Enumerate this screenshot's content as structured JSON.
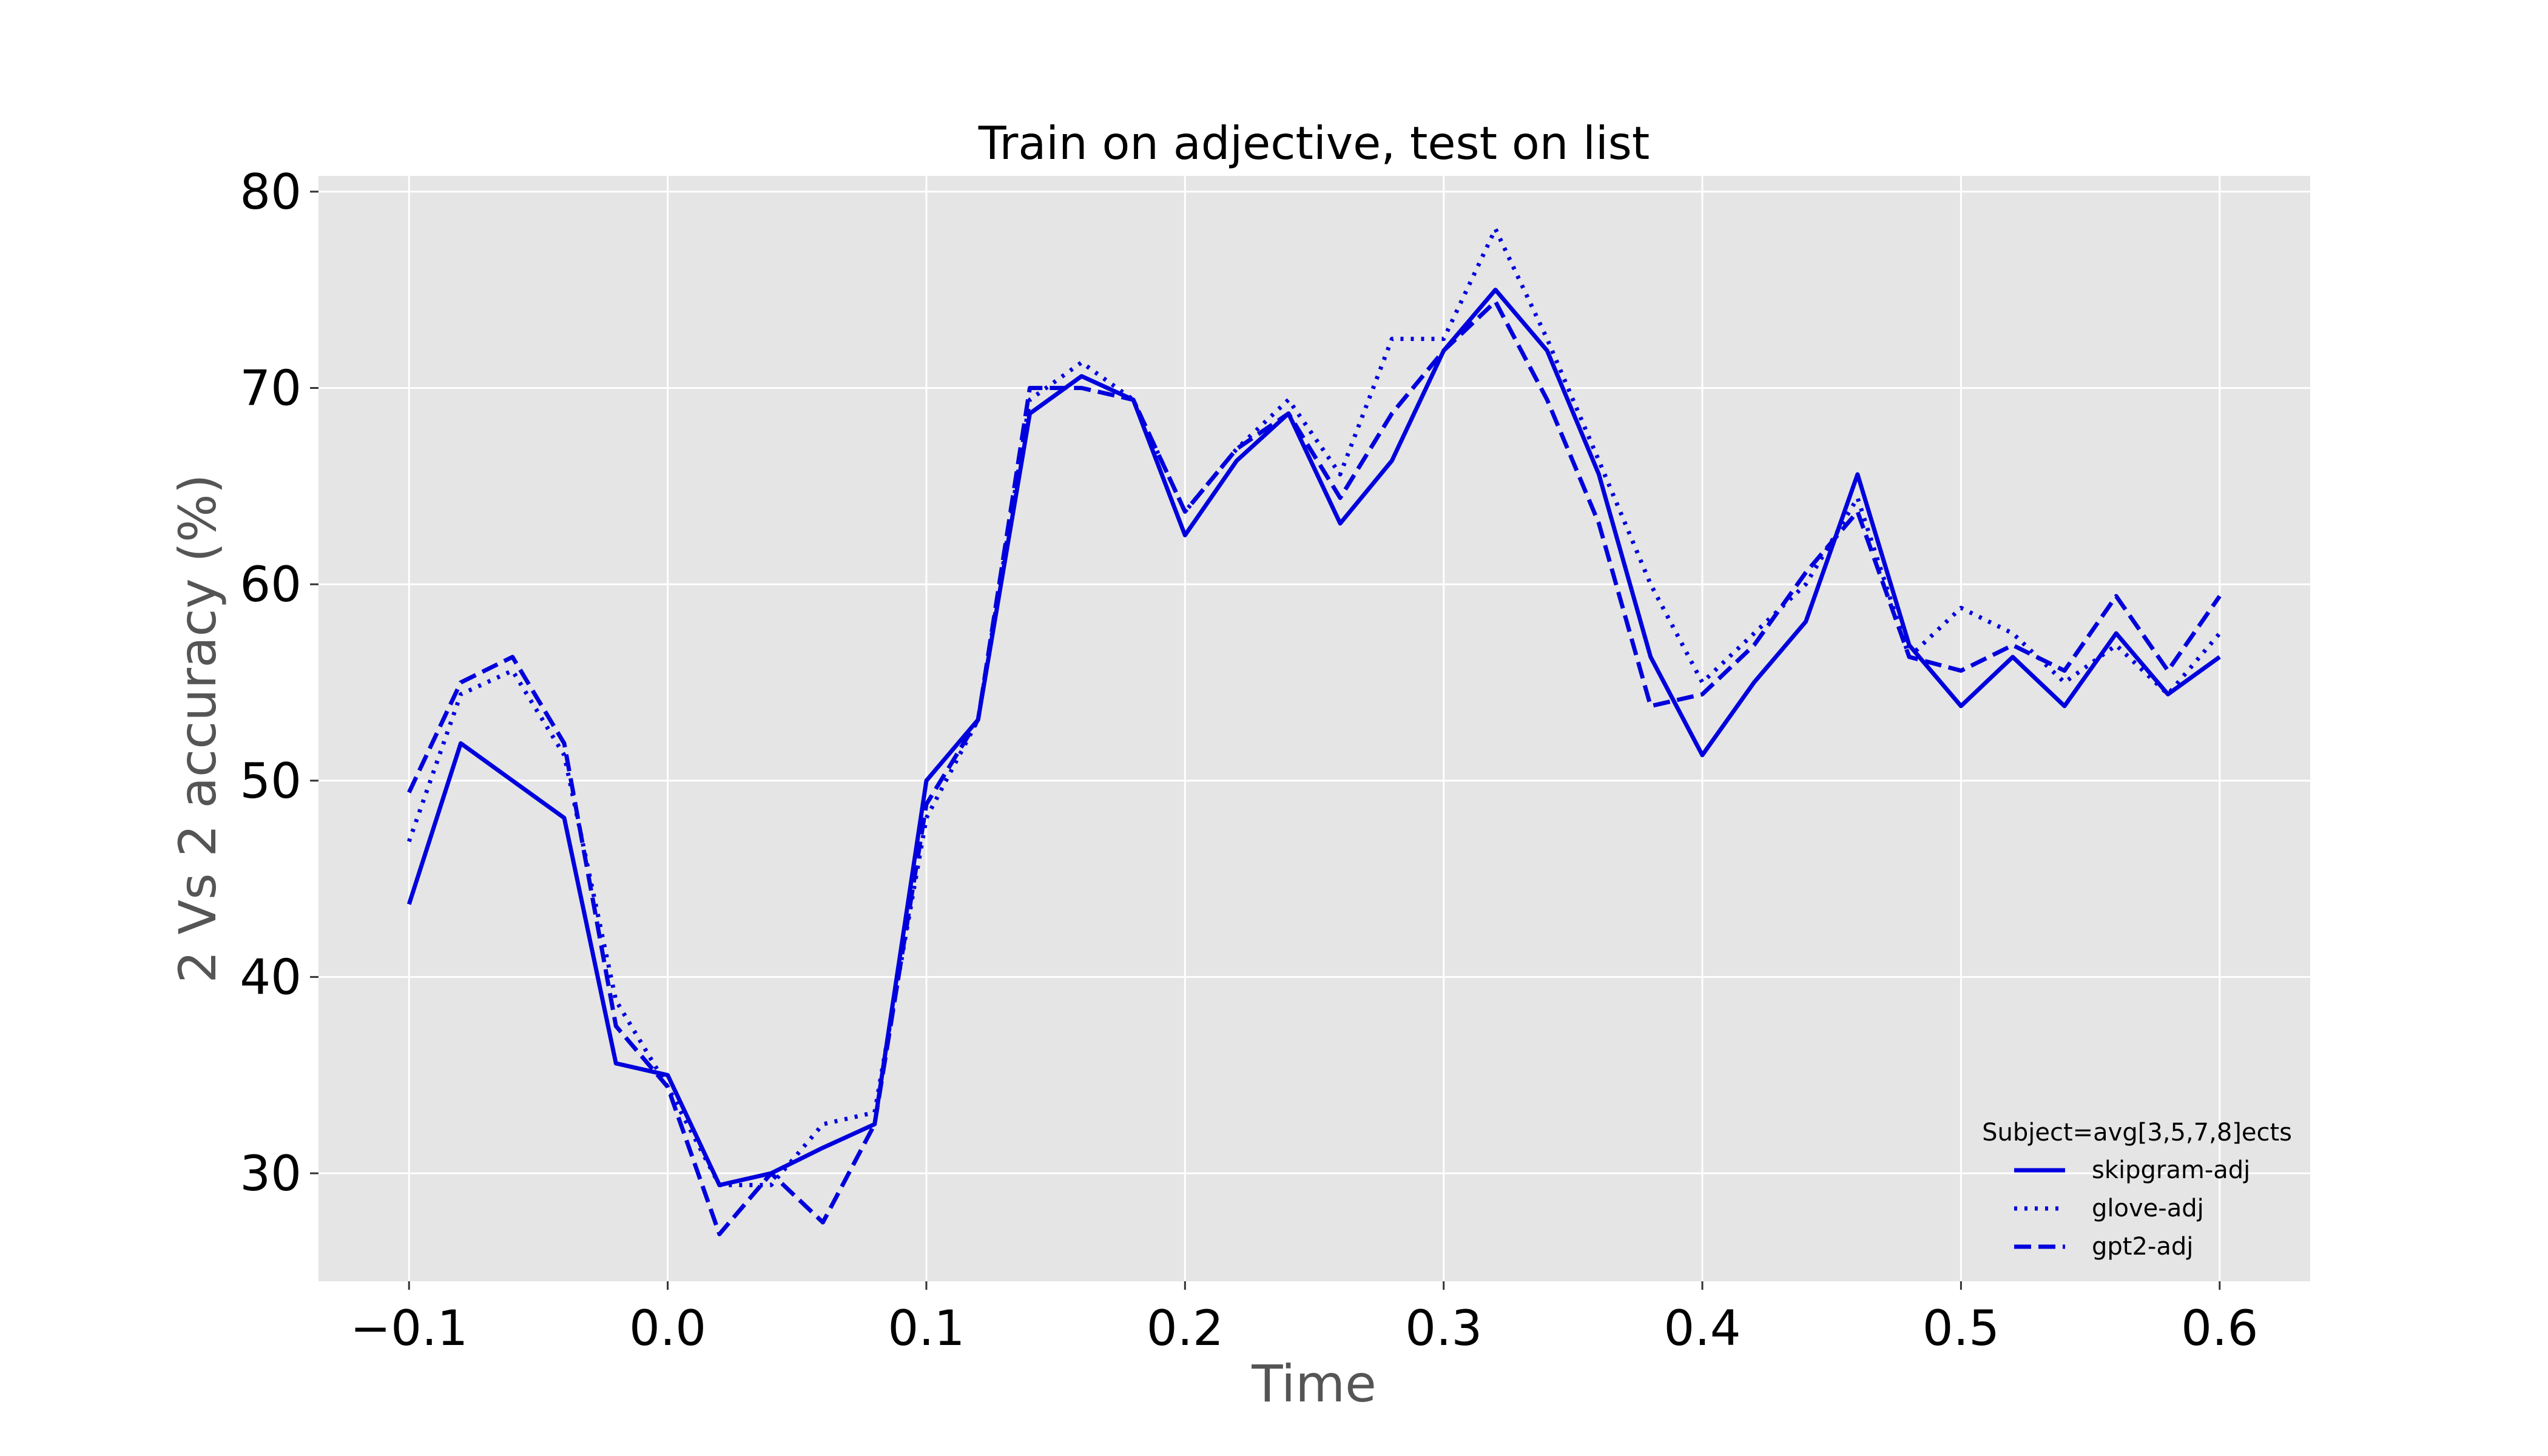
{
  "chart_data": {
    "type": "line",
    "title": "Train on adjective, test on list",
    "xlabel": "Time",
    "ylabel": "2 Vs 2 accuracy (%)",
    "xlim": [
      -0.135,
      0.635
    ],
    "ylim": [
      24.5,
      80.8
    ],
    "xticks": [
      -0.1,
      0.0,
      0.1,
      0.2,
      0.3,
      0.4,
      0.5,
      0.6
    ],
    "xtick_labels": [
      "−0.1",
      "0.0",
      "0.1",
      "0.2",
      "0.3",
      "0.4",
      "0.5",
      "0.6"
    ],
    "yticks": [
      30,
      40,
      50,
      60,
      70,
      80
    ],
    "ytick_labels": [
      "30",
      "40",
      "50",
      "60",
      "70",
      "80"
    ],
    "grid": true,
    "legend_position": "bottom-right",
    "legend_title": "Subject=avg[3,5,7,8]ects",
    "line_color": "#0000dd",
    "background_color": "#e5e5e5",
    "x": [
      -0.1,
      -0.08,
      -0.06,
      -0.04,
      -0.02,
      0.0,
      0.02,
      0.04,
      0.06,
      0.08,
      0.1,
      0.12,
      0.14,
      0.16,
      0.18,
      0.2,
      0.22,
      0.24,
      0.26,
      0.28,
      0.3,
      0.32,
      0.34,
      0.36,
      0.38,
      0.4,
      0.42,
      0.44,
      0.46,
      0.48,
      0.5,
      0.52,
      0.54,
      0.56,
      0.58,
      0.6
    ],
    "series": [
      {
        "name": "skipgram-adj",
        "style": "solid",
        "values": [
          43.7,
          51.9,
          50.0,
          48.1,
          35.6,
          35.0,
          29.4,
          30.0,
          31.3,
          32.5,
          50.0,
          53.1,
          68.7,
          70.6,
          69.4,
          62.5,
          66.3,
          68.7,
          63.1,
          66.3,
          71.9,
          75.0,
          71.9,
          65.6,
          56.3,
          51.3,
          55.0,
          58.1,
          65.6,
          56.9,
          53.8,
          56.3,
          53.8,
          57.5,
          54.4,
          56.3
        ]
      },
      {
        "name": "glove-adj",
        "style": "dotted",
        "values": [
          46.9,
          54.4,
          55.6,
          51.3,
          38.8,
          34.4,
          29.4,
          29.4,
          32.5,
          33.1,
          48.1,
          53.1,
          69.4,
          71.3,
          69.4,
          63.7,
          66.9,
          69.4,
          65.6,
          72.5,
          72.5,
          78.1,
          72.5,
          66.3,
          60.0,
          55.0,
          57.5,
          60.0,
          64.4,
          56.3,
          58.8,
          57.5,
          55.0,
          56.9,
          54.4,
          57.5
        ]
      },
      {
        "name": "gpt2-adj",
        "style": "dashed",
        "values": [
          49.4,
          55.0,
          56.3,
          51.9,
          37.5,
          34.4,
          26.9,
          30.0,
          27.5,
          32.5,
          48.8,
          53.1,
          70.0,
          70.0,
          69.4,
          63.7,
          66.9,
          68.7,
          64.4,
          68.7,
          71.9,
          74.4,
          69.4,
          63.1,
          53.8,
          54.4,
          56.9,
          60.6,
          63.7,
          56.3,
          55.6,
          56.9,
          55.6,
          59.4,
          55.6,
          59.4
        ]
      }
    ]
  }
}
